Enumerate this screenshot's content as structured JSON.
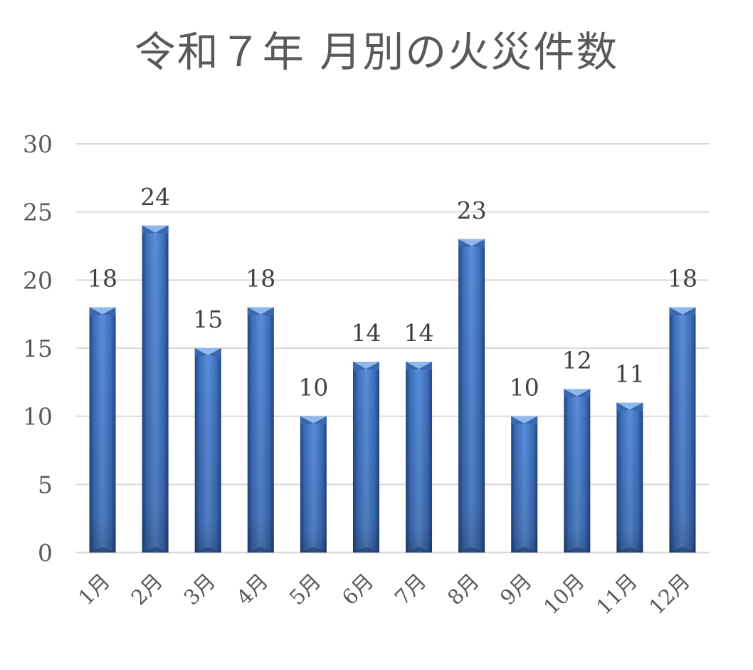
{
  "chart_data": {
    "type": "bar",
    "title": "令和７年 月別の火災件数",
    "categories": [
      "1月",
      "2月",
      "3月",
      "4月",
      "5月",
      "6月",
      "7月",
      "8月",
      "9月",
      "10月",
      "11月",
      "12月"
    ],
    "values": [
      18,
      24,
      15,
      18,
      10,
      14,
      14,
      23,
      10,
      12,
      11,
      18
    ],
    "ylim": [
      0,
      30
    ],
    "yticks": [
      0,
      5,
      10,
      15,
      20,
      25,
      30
    ],
    "grid": true,
    "legend": "none",
    "data_labels": true,
    "colors": {
      "bar_light": "#5b8fd9",
      "bar_mid": "#3d6fbe",
      "bar_dark": "#23467f",
      "bar_cap": "#8fb8ef",
      "grid": "#d9d9d9",
      "text": "#595959"
    }
  }
}
